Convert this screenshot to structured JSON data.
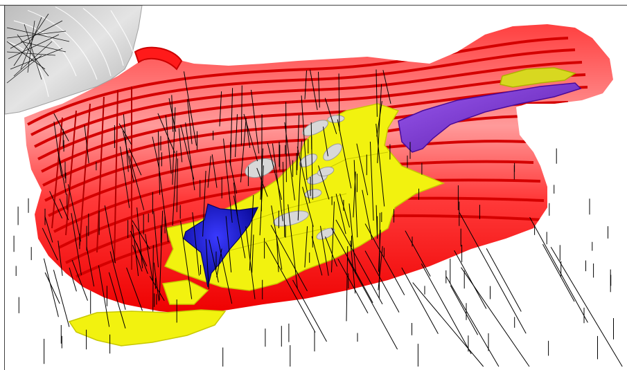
{
  "scene": {
    "colors": {
      "background": "#ffffff",
      "pit_shell": "#ff0000",
      "pit_bench_shade": "#d80000",
      "pit_highlight": "#ff8c8c",
      "ore_zone": "#f2f20f",
      "ore_zone_shade": "#c8c800",
      "blue_body": "#1414d0",
      "purple_body": "#7a2ad6",
      "grey_bodies": "#d8d8d8",
      "terrain": "#c9c9c9",
      "drillholes": "#000000"
    },
    "objects": [
      "pit-shell",
      "ore-zone",
      "blue-orebody",
      "purple-orebody",
      "grey-orebodies",
      "terrain-surface",
      "drillholes"
    ]
  }
}
